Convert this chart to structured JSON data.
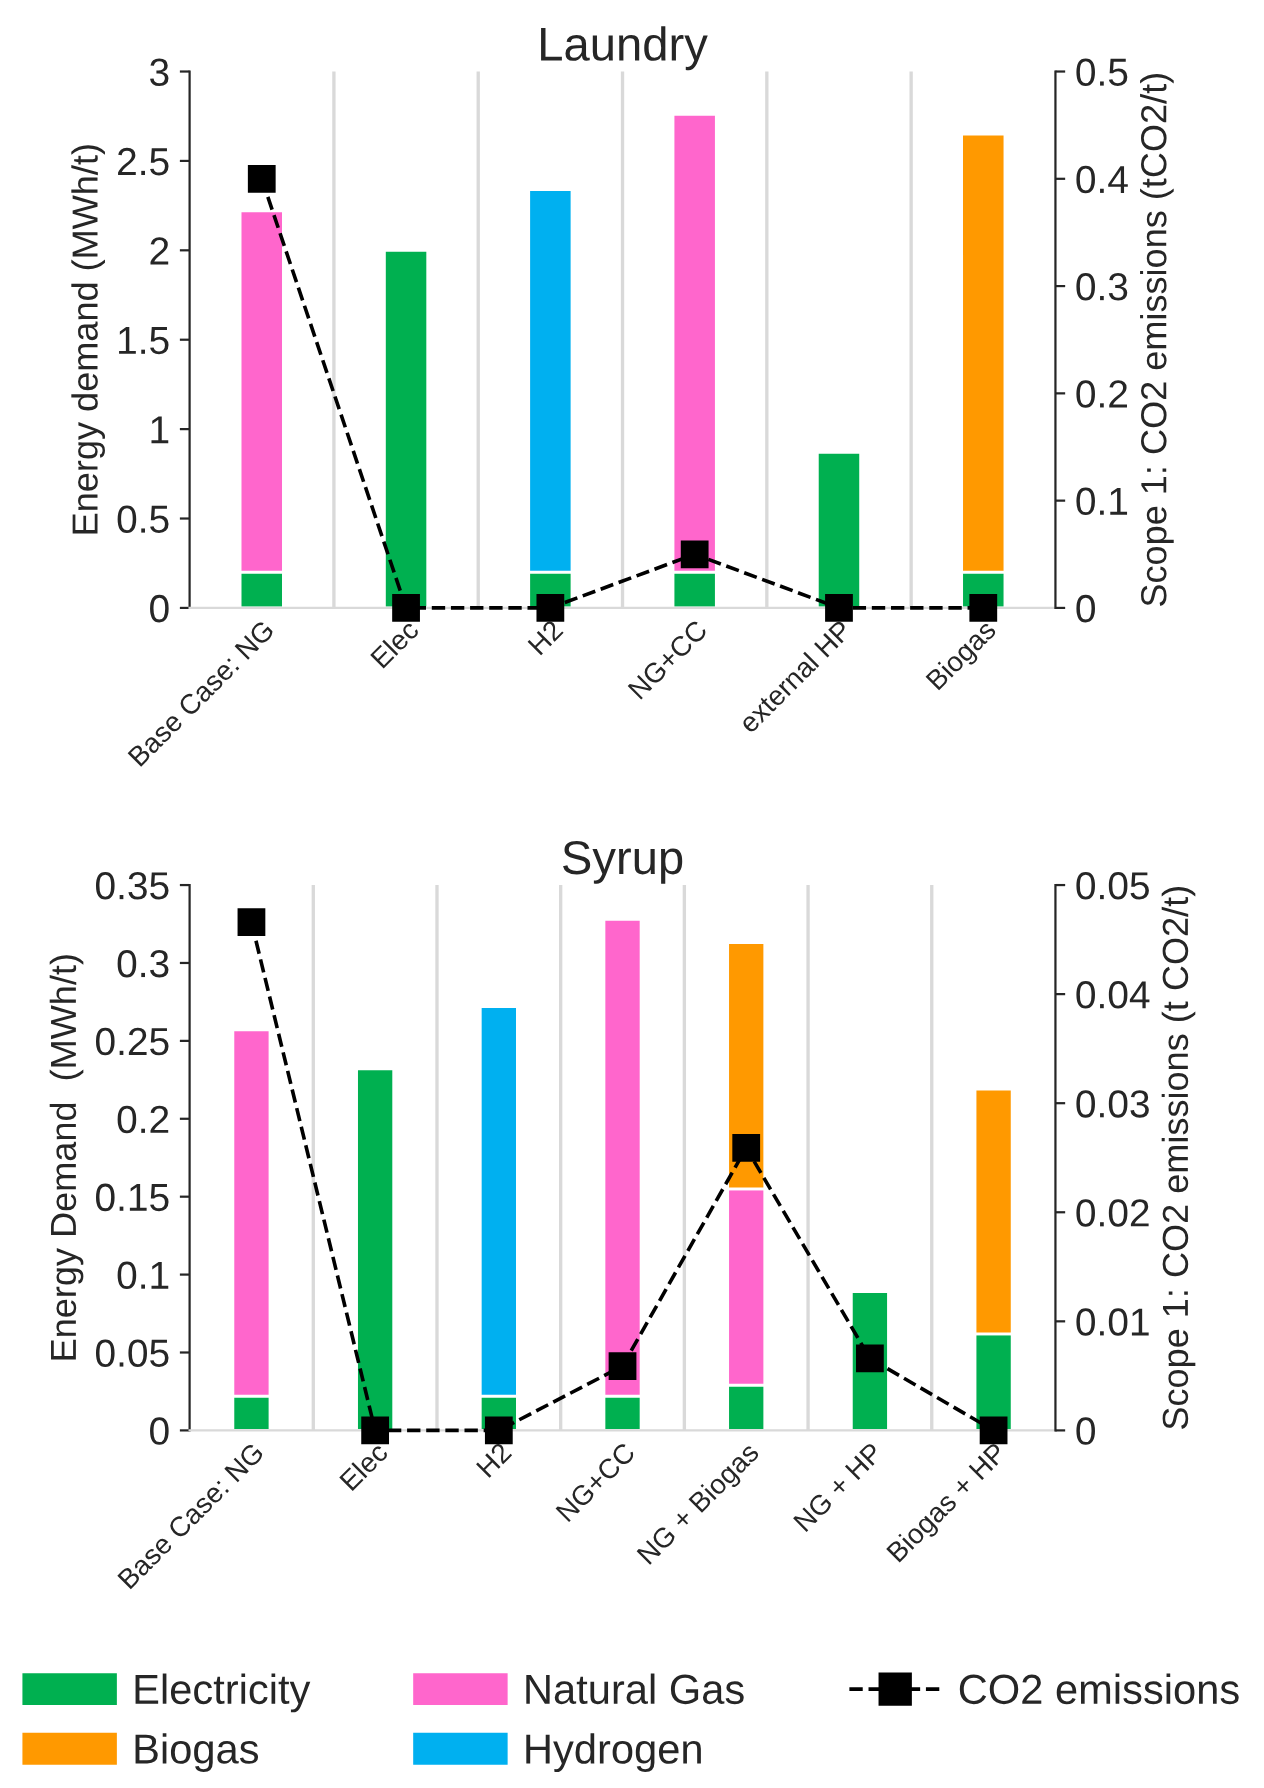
{
  "chart_data": [
    {
      "type": "bar",
      "title": "Laundry",
      "ylabel": "Energy demand (MWh/t)",
      "y2label": "Scope 1: CO2 emissions (tCO2/t)",
      "categories": [
        "Base Case: NG",
        "Elec",
        "H2",
        "NG+CC",
        "external HP",
        "Biogas"
      ],
      "stacked": true,
      "grid": "x",
      "ylim": [
        0,
        3
      ],
      "yticks": [
        0,
        0.5,
        1,
        1.5,
        2,
        2.5,
        3
      ],
      "y2lim": [
        0,
        0.5
      ],
      "y2ticks": [
        0,
        0.1,
        0.2,
        0.3,
        0.4,
        0.5
      ],
      "series": [
        {
          "color": "#00b050",
          "values": [
            0.2,
            2.0,
            0.2,
            0.2,
            0.87,
            0.2
          ]
        },
        {
          "color": "#ff66cc",
          "values": [
            2.02,
            null,
            null,
            2.56,
            null,
            null
          ]
        },
        {
          "color": "#00b0f0",
          "values": [
            null,
            null,
            2.14,
            null,
            null,
            null
          ]
        },
        {
          "color": "#ff9900",
          "values": [
            null,
            null,
            null,
            null,
            null,
            2.45
          ]
        },
        {
          "type": "line",
          "axis": "y2",
          "color": "#000000",
          "marker": "square",
          "line_style": "dashed",
          "values": [
            0.4,
            0,
            0,
            0.05,
            0,
            0
          ]
        }
      ]
    },
    {
      "type": "bar",
      "title": "Syrup",
      "ylabel": "Energy Demand  (MWh/t)",
      "y2label": "Scope 1: CO2 emissions (t CO2/t)",
      "categories": [
        "Base Case: NG",
        "Elec",
        "H2",
        "NG+CC",
        "NG + Biogas",
        "NG + HP",
        "Biogas + HP"
      ],
      "stacked": true,
      "grid": "x",
      "legend": "bottom",
      "ylim": [
        0,
        0.35
      ],
      "yticks": [
        0,
        0.05,
        0.1,
        0.15,
        0.2,
        0.25,
        0.3,
        0.35
      ],
      "y2lim": [
        0,
        0.05
      ],
      "y2ticks": [
        0,
        0.01,
        0.02,
        0.03,
        0.04,
        0.05
      ],
      "series": [
        {
          "name": "Electricity",
          "color": "#00b050",
          "values": [
            0.022,
            0.232,
            0.022,
            0.022,
            0.029,
            0.089,
            0.062
          ]
        },
        {
          "name": "Natural Gas",
          "color": "#ff66cc",
          "values": [
            0.235,
            null,
            null,
            0.306,
            0.126,
            null,
            null
          ]
        },
        {
          "name": "Hydrogen",
          "color": "#00b0f0",
          "values": [
            null,
            null,
            0.25,
            null,
            null,
            null,
            null
          ]
        },
        {
          "name": "Biogas",
          "color": "#ff9900",
          "values": [
            null,
            null,
            null,
            null,
            0.158,
            null,
            0.157
          ]
        },
        {
          "name": "CO2 emissions",
          "type": "line",
          "axis": "y2",
          "color": "#000000",
          "marker": "square",
          "line_style": "dashed",
          "values": [
            0.0466,
            0,
            0,
            0.0059,
            0.0259,
            0.0066,
            0
          ]
        }
      ]
    }
  ]
}
